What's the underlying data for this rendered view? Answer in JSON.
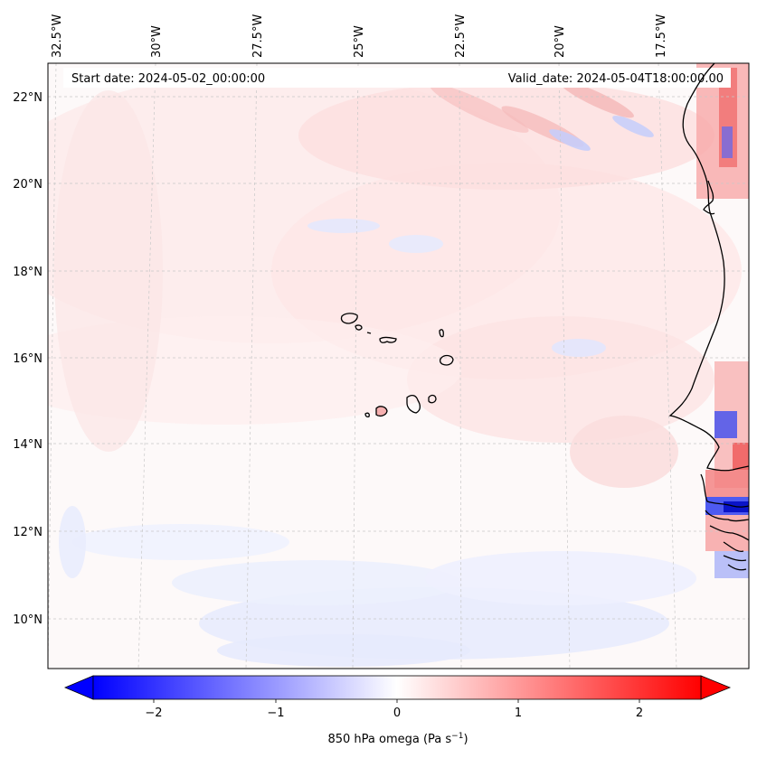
{
  "header": {
    "start_date": "Start date: 2024-05-02_00:00:00",
    "valid_date": "Valid_date: 2024-05-04T18:00:00.00"
  },
  "lon_labels": [
    "32.5°W",
    "30°W",
    "27.5°W",
    "25°W",
    "22.5°W",
    "20°W",
    "17.5°W"
  ],
  "lat_labels": [
    "22°N",
    "20°N",
    "18°N",
    "16°N",
    "14°N",
    "12°N",
    "10°N"
  ],
  "colorbar": {
    "label": "850 hPa omega (Pa s",
    "label_sup": "−1",
    "label_end": ")",
    "ticks": [
      "−2",
      "−1",
      "0",
      "1",
      "2"
    ],
    "vmin": -2.5,
    "vmax": 2.5,
    "low_color": "#0000ff",
    "mid_color": "#ffffff",
    "high_color": "#ff0000"
  },
  "colors": {
    "coastline": "#000000",
    "gridline": "#b0b0b0",
    "pos_field": "#ffd6d6",
    "neg_field": "#dfe4ff"
  }
}
